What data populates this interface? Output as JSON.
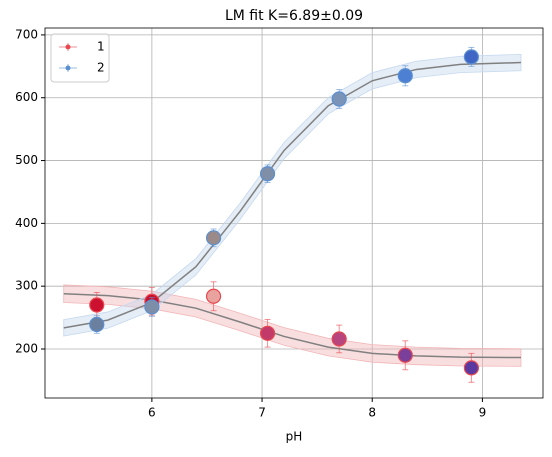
{
  "chart_data": {
    "type": "scatter",
    "title": "LM fit K=6.89±0.09",
    "x_label": "pH",
    "xlim": [
      5.03,
      9.55
    ],
    "ylim": [
      122,
      711
    ],
    "xticks": [
      6,
      7,
      8,
      9
    ],
    "yticks": [
      200,
      300,
      400,
      500,
      600,
      700
    ],
    "grid": true,
    "legend": "upper-left",
    "series": [
      {
        "name": "1",
        "color": "#e8474f",
        "x": [
          5.5,
          6.0,
          6.56,
          7.05,
          7.7,
          8.3,
          8.9
        ],
        "values": [
          270,
          276,
          284,
          225,
          216,
          190,
          170
        ],
        "yerr": [
          20,
          22,
          23,
          22,
          22,
          23,
          23
        ],
        "xerr": [
          0.05,
          0.05,
          0.05,
          0.05,
          0.05,
          0.05,
          0.05
        ],
        "point_colors": [
          "#cc1030",
          "#c8102e",
          "#e9a39f",
          "#c23a6a",
          "#b7457e",
          "#7a3f9a",
          "#5a3aa0"
        ]
      },
      {
        "name": "2",
        "color": "#5b8fd0",
        "x": [
          5.5,
          6.0,
          6.56,
          7.05,
          7.7,
          8.3,
          8.9
        ],
        "values": [
          239,
          267,
          377,
          479,
          598,
          635,
          665
        ],
        "yerr": [
          14,
          15,
          14,
          14,
          15,
          16,
          15
        ],
        "xerr": [
          0.05,
          0.05,
          0.05,
          0.05,
          0.05,
          0.05,
          0.05
        ],
        "point_colors": [
          "#6b7f9e",
          "#7d8ea8",
          "#9a8a8a",
          "#7f8fa8",
          "#7c93b8",
          "#4d7fd2",
          "#3f66c4"
        ]
      }
    ],
    "fits": [
      {
        "color": "#808080",
        "band_color": "#f2b6b8",
        "band": 14,
        "x": [
          5.2,
          5.6,
          6.0,
          6.4,
          6.8,
          7.2,
          7.6,
          8.0,
          8.4,
          8.8,
          9.35
        ],
        "y": [
          288,
          285,
          278,
          265,
          243,
          220,
          203,
          193,
          189,
          187,
          186.4
        ]
      },
      {
        "color": "#808080",
        "band_color": "#c6d8ee",
        "band": 13,
        "x": [
          5.2,
          5.6,
          6.0,
          6.4,
          6.8,
          7.2,
          7.6,
          8.0,
          8.4,
          8.8,
          9.35
        ],
        "y": [
          233.7,
          246,
          274,
          331,
          419,
          516,
          587,
          627,
          645,
          653,
          656
        ]
      }
    ]
  }
}
